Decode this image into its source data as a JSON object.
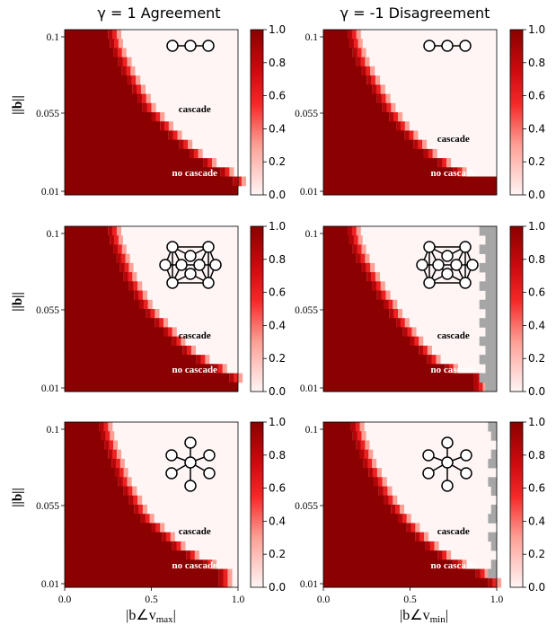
{
  "column_titles": [
    "γ = 1 Agreement",
    "γ = -1 Disagreement"
  ],
  "y_axis_label": "||b||",
  "x_axis_labels": [
    "|b∠v",
    "max",
    "|b∠v",
    "min"
  ],
  "annotations": {
    "cascade": "cascade",
    "no_cascade": "no cascade"
  },
  "colors": {
    "cascade": "#8b0000",
    "no_cascade": "#fff5f5",
    "unconverged": "#a6a6a6"
  },
  "chart_data": {
    "type": "heatmap",
    "layout": "3 rows x 2 columns",
    "colormap": "Reds (white to dark red)",
    "colorbar": {
      "range": [
        0,
        1.0
      ],
      "ticks": [
        "0.0",
        "0.2",
        "0.4",
        "0.6",
        "0.8",
        "1.0"
      ]
    },
    "x_ticks": [
      "0.0",
      "0.5",
      "1.0"
    ],
    "y_ticks": [
      "0.1",
      "0.055",
      "0.01"
    ],
    "xlim": [
      0,
      1
    ],
    "ylim": [
      0.01,
      0.1
    ],
    "rows": [
      "path graph (3 nodes)",
      "dense graph (10 nodes)",
      "star graph (6 nodes)"
    ],
    "panels": [
      {
        "row": 0,
        "col": 0,
        "graph": "path",
        "boundary_x": [
          0.25,
          0.26,
          0.28,
          0.31,
          0.33,
          0.36,
          0.39,
          0.42,
          0.45,
          0.5,
          0.55,
          0.6,
          0.66,
          0.72,
          0.8,
          0.9,
          0.97,
          1.0
        ]
      },
      {
        "row": 0,
        "col": 1,
        "graph": "path",
        "boundary_x": [
          0.14,
          0.15,
          0.17,
          0.19,
          0.22,
          0.25,
          0.28,
          0.31,
          0.34,
          0.38,
          0.42,
          0.47,
          0.52,
          0.58,
          0.66,
          0.75,
          1.0,
          1.0
        ]
      },
      {
        "row": 1,
        "col": 0,
        "graph": "dense",
        "boundary_x": [
          0.25,
          0.26,
          0.28,
          0.3,
          0.32,
          0.34,
          0.37,
          0.4,
          0.43,
          0.47,
          0.52,
          0.57,
          0.62,
          0.68,
          0.76,
          0.86,
          0.95,
          1.0
        ]
      },
      {
        "row": 1,
        "col": 1,
        "graph": "dense",
        "boundary_x": [
          0.14,
          0.15,
          0.17,
          0.19,
          0.22,
          0.25,
          0.28,
          0.31,
          0.35,
          0.38,
          0.42,
          0.46,
          0.5,
          0.55,
          0.6,
          0.7,
          0.87,
          0.87
        ]
      },
      {
        "row": 2,
        "col": 0,
        "graph": "star",
        "boundary_x": [
          0.2,
          0.21,
          0.23,
          0.25,
          0.27,
          0.29,
          0.31,
          0.34,
          0.37,
          0.4,
          0.44,
          0.5,
          0.56,
          0.62,
          0.7,
          0.8,
          0.89,
          0.89
        ]
      },
      {
        "row": 2,
        "col": 1,
        "graph": "star",
        "boundary_x": [
          0.16,
          0.17,
          0.19,
          0.21,
          0.23,
          0.26,
          0.29,
          0.32,
          0.35,
          0.39,
          0.43,
          0.48,
          0.53,
          0.59,
          0.66,
          0.75,
          0.88,
          0.95
        ]
      }
    ],
    "unconverged_regions": [
      {
        "row": 1,
        "col": 1,
        "x_range": [
          0.9,
          1.0
        ]
      },
      {
        "row": 2,
        "col": 1,
        "x_range": [
          0.95,
          1.0
        ]
      }
    ]
  }
}
